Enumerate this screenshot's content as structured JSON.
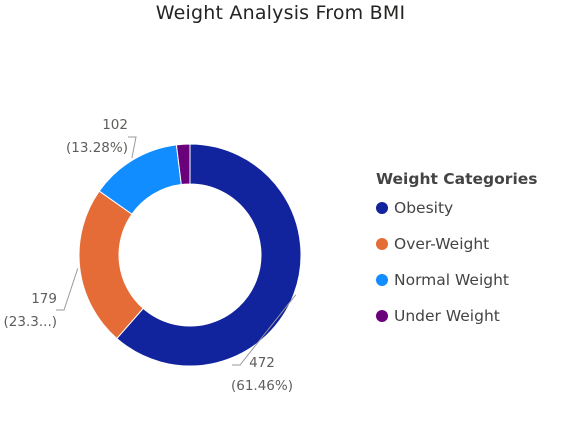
{
  "chart_data": {
    "type": "pie",
    "style": "donut",
    "title": "Weight Analysis From BMI",
    "legend_title": "Weight Categories",
    "legend_position": "right",
    "slices": [
      {
        "name": "Obesity",
        "value": 472,
        "label": "472",
        "pct_label": "(61.46%)",
        "color": "#12239E"
      },
      {
        "name": "Over-Weight",
        "value": 179,
        "label": "179",
        "pct_label": "(23.3...)",
        "color": "#E66C37"
      },
      {
        "name": "Normal Weight",
        "value": 102,
        "label": "102",
        "pct_label": "(13.28%)",
        "color": "#118DFF"
      },
      {
        "name": "Under Weight",
        "value": 15,
        "label": "",
        "pct_label": "",
        "color": "#6B007B"
      }
    ]
  }
}
